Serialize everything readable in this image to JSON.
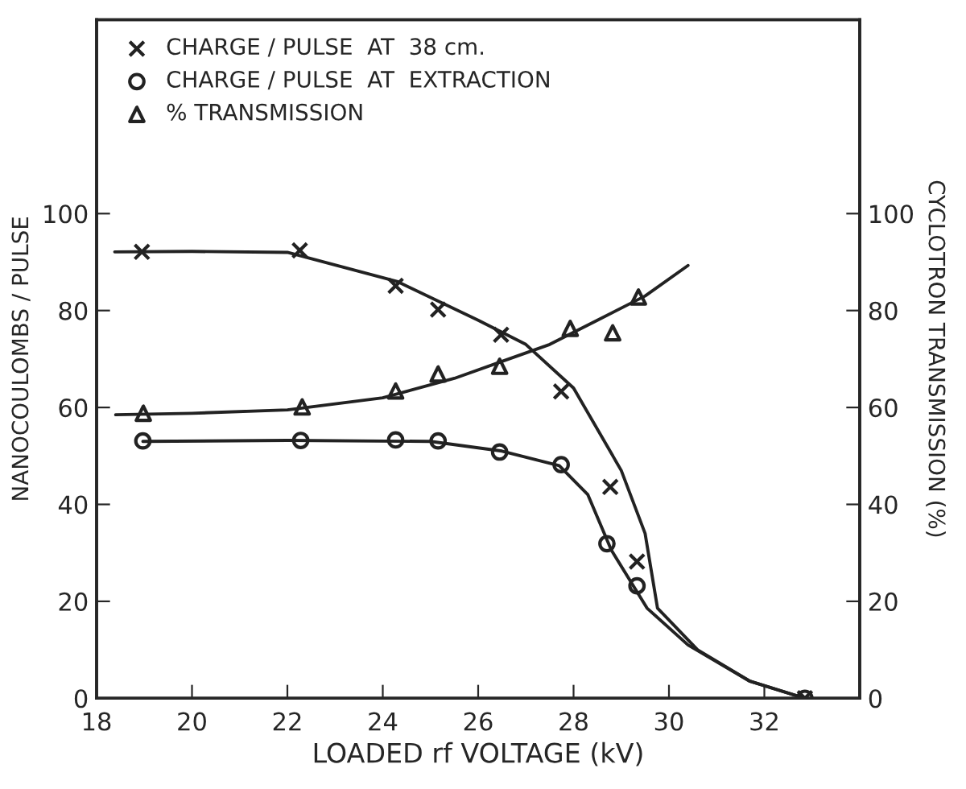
{
  "chart_data": {
    "type": "scatter",
    "xlabel": "LOADED rf VOLTAGE (kV)",
    "ylabel": "NANOCOULOMBS / PULSE",
    "y2label": "CYCLOTRON TRANSMISSION (%)",
    "xlim": [
      18,
      34
    ],
    "xticks": [
      18,
      20,
      22,
      24,
      26,
      28,
      30,
      32
    ],
    "ylim": [
      0,
      140
    ],
    "yticks": [
      0,
      20,
      40,
      60,
      80,
      100
    ],
    "y2lim": [
      0,
      140
    ],
    "y2ticks": [
      0,
      20,
      40,
      60,
      80,
      100
    ],
    "legend": "top left",
    "grid": false,
    "series": [
      {
        "name": "CHARGE / PULSE  AT  38 cm.",
        "marker": "cross",
        "color": "#222222",
        "x": [
          18.95,
          22.26,
          24.27,
          25.16,
          26.48,
          27.74,
          28.77,
          29.33,
          32.85
        ],
        "values": [
          92.1,
          92.4,
          85.1,
          80.2,
          75.0,
          63.3,
          43.6,
          28.2,
          0
        ]
      },
      {
        "name": "CHARGE / PULSE  AT  EXTRACTION",
        "marker": "circle",
        "color": "#222222",
        "x": [
          18.97,
          22.28,
          24.27,
          25.16,
          26.45,
          27.74,
          28.7,
          29.33,
          32.85
        ],
        "values": [
          53.1,
          53.2,
          53.3,
          53.1,
          50.8,
          48.2,
          31.9,
          23.2,
          0
        ]
      },
      {
        "name": "% TRANSMISSION",
        "marker": "triangle",
        "color": "#222222",
        "x": [
          18.98,
          22.31,
          24.27,
          25.16,
          26.45,
          27.93,
          28.82,
          29.36
        ],
        "values": [
          58.8,
          60.1,
          63.4,
          66.9,
          68.5,
          76.3,
          75.4,
          82.8
        ]
      },
      {
        "type": "line",
        "marker": "none",
        "line_style": "solid",
        "color": "#222222",
        "x": [
          18.38,
          20,
          22,
          24.3,
          26,
          27,
          28,
          29,
          29.5,
          29.76,
          30.6,
          31.7,
          32.85
        ],
        "values": [
          92.1,
          92.2,
          92,
          86,
          78,
          73,
          64,
          47,
          34,
          18.6,
          10,
          3.5,
          0
        ]
      },
      {
        "type": "line",
        "marker": "none",
        "line_style": "solid",
        "color": "#222222",
        "x": [
          18.97,
          22,
          25,
          26.5,
          27.7,
          28.3,
          28.79,
          29.54,
          30.4,
          31.7,
          32.85
        ],
        "values": [
          53,
          53.2,
          53,
          51,
          48,
          42,
          30.6,
          18.6,
          11,
          3.5,
          0
        ]
      },
      {
        "type": "line",
        "marker": "none",
        "line_style": "solid",
        "color": "#222222",
        "x": [
          18.4,
          20,
          22,
          24,
          25.5,
          26.5,
          27.5,
          28.5,
          29.5,
          30.4
        ],
        "values": [
          58.5,
          58.8,
          59.5,
          62,
          66,
          69.5,
          73,
          78,
          83,
          89.3
        ]
      }
    ]
  }
}
